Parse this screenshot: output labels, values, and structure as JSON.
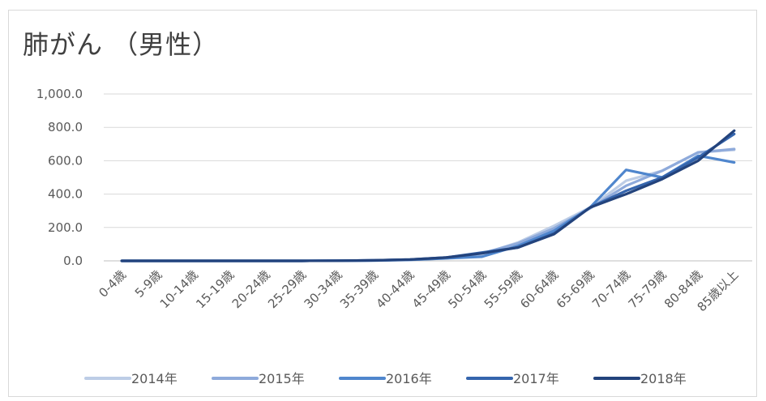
{
  "chart_data": {
    "type": "line",
    "title": "肺がん （男性）",
    "categories": [
      "0-4歳",
      "5-9歳",
      "10-14歳",
      "15-19歳",
      "20-24歳",
      "25-29歳",
      "30-34歳",
      "35-39歳",
      "40-44歳",
      "45-49歳",
      "50-54歳",
      "55-59歳",
      "60-64歳",
      "65-69歳",
      "70-74歳",
      "75-79歳",
      "80-84歳",
      "85歳以上"
    ],
    "y_ticks": [
      "0.0",
      "200.0",
      "400.0",
      "600.0",
      "800.0",
      "1,000.0"
    ],
    "ylim": [
      0,
      1000
    ],
    "grid": true,
    "legend_position": "bottom",
    "series": [
      {
        "name": "2014年",
        "color": "#bdcde6",
        "values": [
          0,
          0,
          0,
          0,
          0,
          0,
          1,
          3,
          7,
          15,
          40,
          110,
          210,
          320,
          480,
          540,
          650,
          665
        ]
      },
      {
        "name": "2015年",
        "color": "#8eaadb",
        "values": [
          0,
          0,
          0,
          0,
          0,
          0,
          1,
          3,
          7,
          17,
          45,
          105,
          195,
          315,
          450,
          540,
          650,
          670
        ]
      },
      {
        "name": "2016年",
        "color": "#4f86cd",
        "values": [
          0,
          0,
          0,
          0,
          0,
          0,
          1,
          2,
          6,
          15,
          25,
          90,
          180,
          320,
          545,
          500,
          630,
          590
        ]
      },
      {
        "name": "2017年",
        "color": "#3565ad",
        "values": [
          0,
          0,
          0,
          0,
          0,
          0,
          1,
          3,
          8,
          20,
          50,
          80,
          165,
          320,
          420,
          500,
          620,
          760
        ]
      },
      {
        "name": "2018年",
        "color": "#23437c",
        "values": [
          0,
          0,
          0,
          0,
          0,
          0,
          1,
          3,
          8,
          20,
          45,
          80,
          160,
          320,
          400,
          490,
          600,
          780
        ]
      }
    ]
  }
}
